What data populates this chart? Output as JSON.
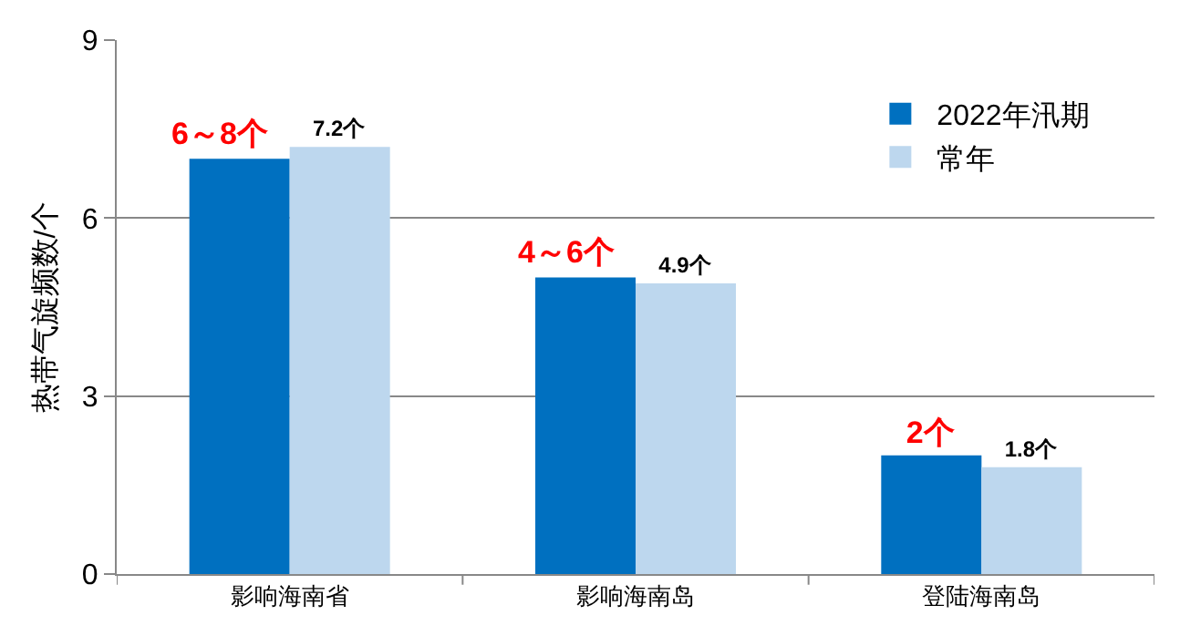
{
  "chart_data": {
    "type": "bar",
    "ylabel": "热带气旋频数/个",
    "categories": [
      "影响海南省",
      "影响海南岛",
      "登陆海南岛"
    ],
    "series": [
      {
        "name": "2022年汛期",
        "color": "#0070c0",
        "values": [
          7,
          5,
          2
        ],
        "value_labels": [
          null,
          null,
          "2个"
        ]
      },
      {
        "name": "常年",
        "color": "#bdd7ee",
        "values": [
          7.2,
          4.9,
          1.8
        ],
        "value_labels": [
          "7.2个",
          "4.9个",
          "1.8个"
        ]
      }
    ],
    "annotations": [
      {
        "text": "6～8个",
        "x": "影响海南省",
        "y": 7
      },
      {
        "text": "4～6个",
        "x": "影响海南岛",
        "y": 5
      }
    ],
    "ylim": [
      0,
      9
    ],
    "yticks": [
      0,
      3,
      6,
      9
    ],
    "grid": "y",
    "legend": "top right"
  }
}
